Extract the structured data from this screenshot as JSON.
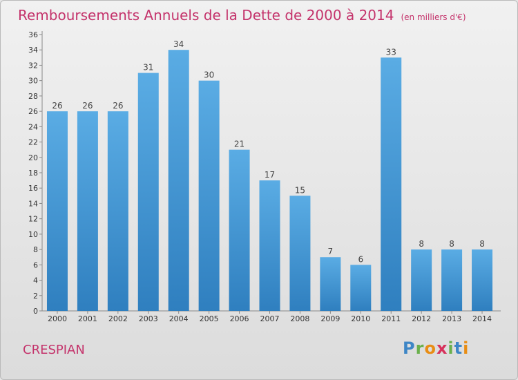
{
  "header": {
    "title": "Remboursements Annuels de la Dette de 2000 à 2014",
    "unit": "(en milliers d'€)"
  },
  "footer": {
    "commune": "CRESPIAN",
    "brand": "Proxiti"
  },
  "colors": {
    "title": "#c4336b",
    "bar_top": "#5aace4",
    "bar_bottom": "#2f7fbf"
  },
  "chart_data": {
    "type": "bar",
    "title": "Remboursements Annuels de la Dette de 2000 à 2014",
    "xlabel": "",
    "ylabel": "",
    "categories": [
      "2000",
      "2001",
      "2002",
      "2003",
      "2004",
      "2005",
      "2006",
      "2007",
      "2008",
      "2009",
      "2010",
      "2011",
      "2012",
      "2013",
      "2014"
    ],
    "values": [
      26,
      26,
      26,
      31,
      34,
      30,
      21,
      17,
      15,
      7,
      6,
      33,
      8,
      8,
      8
    ],
    "ylim": [
      0,
      36
    ],
    "yticks": [
      0,
      2,
      4,
      6,
      8,
      10,
      12,
      14,
      16,
      18,
      20,
      22,
      24,
      26,
      28,
      30,
      32,
      34,
      36
    ],
    "grid": false,
    "legend": "none"
  }
}
